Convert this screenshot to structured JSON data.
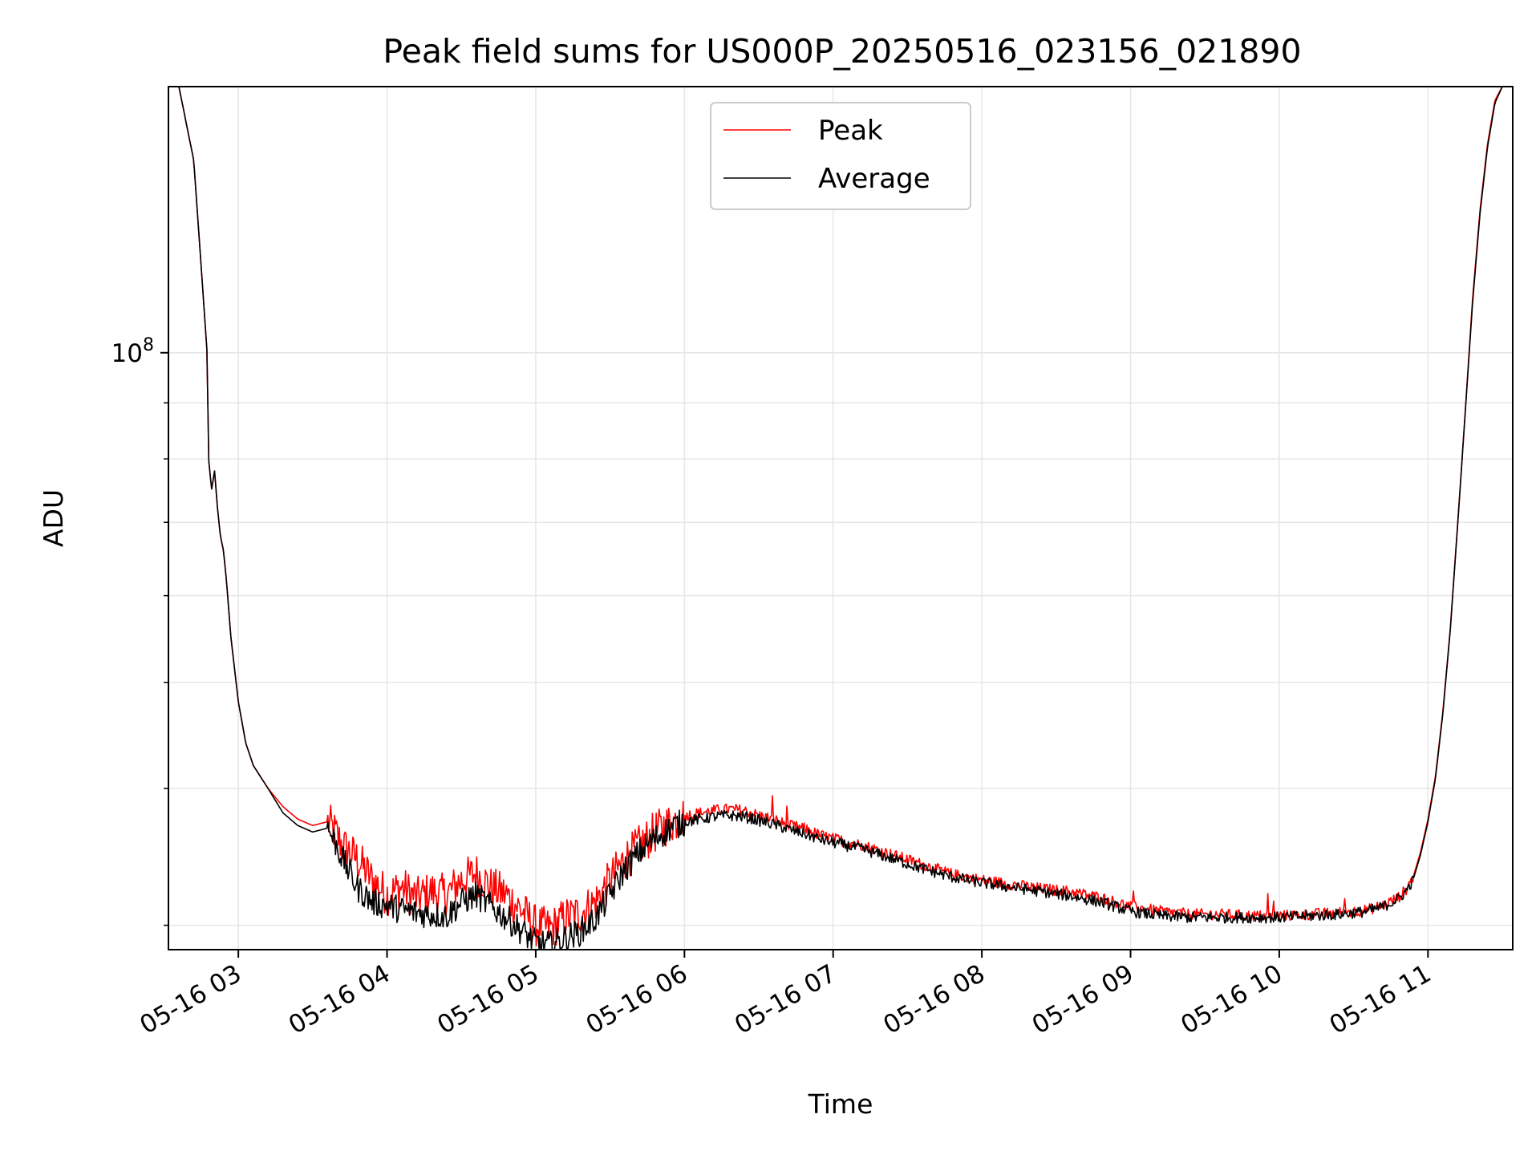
{
  "chart_data": {
    "type": "line",
    "title": "Peak field sums for US000P_20250516_023156_021890",
    "xlabel": "Time",
    "ylabel": "ADU",
    "yscale": "log",
    "ytick_label": {
      "base": "10",
      "exponent": "8"
    },
    "xticks": [
      "05-16 03",
      "05-16 04",
      "05-16 05",
      "05-16 06",
      "05-16 07",
      "05-16 08",
      "05-16 09",
      "05-16 10",
      "05-16 11"
    ],
    "x_unit": "hour of 2025-05-16",
    "xlim": [
      2.53,
      11.57
    ],
    "ylim": [
      28500000,
      175000000
    ],
    "grid": true,
    "legend_position": "upper center",
    "series": [
      {
        "name": "Peak",
        "color": "#ff0000",
        "x": [
          2.53,
          2.6,
          2.7,
          2.75,
          2.79,
          2.8,
          2.82,
          2.84,
          2.86,
          2.88,
          2.9,
          2.92,
          2.95,
          3.0,
          3.05,
          3.1,
          3.2,
          3.3,
          3.4,
          3.5,
          3.6,
          3.65,
          3.7,
          3.8,
          3.9,
          4.0,
          4.1,
          4.2,
          4.3,
          4.4,
          4.5,
          4.6,
          4.7,
          4.8,
          4.9,
          5.0,
          5.1,
          5.2,
          5.3,
          5.4,
          5.5,
          5.6,
          5.7,
          5.8,
          5.9,
          6.0,
          6.1,
          6.2,
          6.3,
          6.4,
          6.5,
          6.6,
          6.7,
          6.8,
          6.9,
          7.0,
          7.2,
          7.4,
          7.6,
          7.8,
          8.0,
          8.2,
          8.4,
          8.6,
          8.8,
          9.0,
          9.2,
          9.4,
          9.6,
          9.8,
          10.0,
          10.2,
          10.4,
          10.6,
          10.7,
          10.8,
          10.85,
          10.9,
          10.95,
          11.0,
          11.05,
          11.1,
          11.15,
          11.2,
          11.25,
          11.3,
          11.35,
          11.4,
          11.45,
          11.5,
          11.57
        ],
        "y": [
          175000000,
          175000000,
          150000000,
          120000000,
          100000000,
          80000000,
          75000000,
          78000000,
          72000000,
          68000000,
          66000000,
          62000000,
          55000000,
          48000000,
          44000000,
          42000000,
          40000000,
          38500000,
          37500000,
          37000000,
          37300000,
          36500000,
          35500000,
          34500000,
          33000000,
          32000000,
          32500000,
          31800000,
          32200000,
          32000000,
          33000000,
          33500000,
          32500000,
          32000000,
          31000000,
          30000000,
          29800000,
          30500000,
          30800000,
          31500000,
          33000000,
          34500000,
          35500000,
          36500000,
          37200000,
          37800000,
          38000000,
          38200000,
          38300000,
          38200000,
          37800000,
          37500000,
          37000000,
          36800000,
          36300000,
          36000000,
          35500000,
          34800000,
          34100000,
          33400000,
          33000000,
          32700000,
          32400000,
          32200000,
          31800000,
          31200000,
          30900000,
          30700000,
          30700000,
          30600000,
          30600000,
          30700000,
          30800000,
          31000000,
          31300000,
          31800000,
          32300000,
          33200000,
          35000000,
          37500000,
          41000000,
          47000000,
          56000000,
          70000000,
          88000000,
          112000000,
          135000000,
          155000000,
          170000000,
          175000000,
          175000000
        ]
      },
      {
        "name": "Average",
        "color": "#000000",
        "x": [
          2.53,
          2.6,
          2.7,
          2.75,
          2.79,
          2.8,
          2.82,
          2.84,
          2.86,
          2.88,
          2.9,
          2.92,
          2.95,
          3.0,
          3.05,
          3.1,
          3.2,
          3.3,
          3.4,
          3.5,
          3.6,
          3.65,
          3.7,
          3.8,
          3.9,
          4.0,
          4.1,
          4.2,
          4.3,
          4.4,
          4.5,
          4.6,
          4.7,
          4.8,
          4.9,
          5.0,
          5.1,
          5.2,
          5.3,
          5.4,
          5.5,
          5.6,
          5.7,
          5.8,
          5.9,
          6.0,
          6.1,
          6.2,
          6.3,
          6.4,
          6.5,
          6.6,
          6.7,
          6.8,
          6.9,
          7.0,
          7.2,
          7.4,
          7.6,
          7.8,
          8.0,
          8.2,
          8.4,
          8.6,
          8.8,
          9.0,
          9.2,
          9.4,
          9.6,
          9.8,
          10.0,
          10.2,
          10.4,
          10.6,
          10.7,
          10.8,
          10.85,
          10.9,
          10.95,
          11.0,
          11.05,
          11.1,
          11.15,
          11.2,
          11.25,
          11.3,
          11.35,
          11.4,
          11.45,
          11.5,
          11.57
        ],
        "y": [
          175000000,
          175000000,
          150000000,
          120000000,
          100000000,
          80000000,
          75000000,
          78000000,
          72000000,
          68000000,
          66000000,
          62000000,
          55000000,
          48000000,
          44000000,
          42000000,
          40000000,
          38000000,
          37000000,
          36500000,
          36800000,
          35800000,
          34500000,
          32500000,
          31500000,
          31300000,
          31000000,
          30800000,
          30700000,
          30600000,
          31500000,
          32000000,
          31200000,
          30500000,
          29700000,
          28900000,
          28800000,
          29200000,
          29600000,
          30400000,
          32000000,
          33800000,
          35000000,
          36000000,
          36800000,
          37300000,
          37500000,
          37700000,
          37800000,
          37700000,
          37400000,
          37100000,
          36700000,
          36400000,
          36000000,
          35700000,
          35200000,
          34500000,
          33800000,
          33200000,
          32800000,
          32500000,
          32200000,
          31900000,
          31500000,
          30900000,
          30600000,
          30500000,
          30500000,
          30500000,
          30500000,
          30600000,
          30700000,
          30900000,
          31200000,
          31700000,
          32200000,
          33000000,
          34800000,
          37300000,
          40800000,
          46800000,
          55800000,
          69800000,
          87800000,
          111000000,
          134000000,
          154000000,
          169000000,
          175000000,
          175000000
        ]
      }
    ]
  }
}
